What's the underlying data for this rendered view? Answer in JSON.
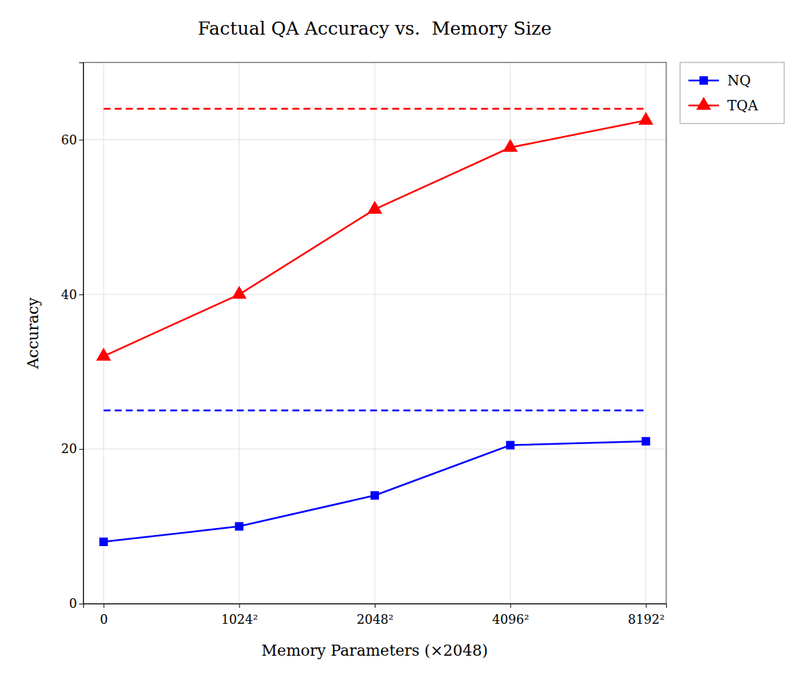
{
  "chart_data": {
    "type": "line",
    "title": "Factual QA Accuracy vs.  Memory Size",
    "x_label": "Memory Parameters (×2048)",
    "y_label": "Accuracy",
    "categories": [
      "0",
      "1024²",
      "2048²",
      "4096²",
      "8192²"
    ],
    "series": [
      {
        "name": "NQ",
        "color": "#0000FF",
        "marker": "square",
        "values": [
          8,
          10,
          14,
          20.5,
          21
        ],
        "baseline": 25
      },
      {
        "name": "TQA",
        "color": "#FF0000",
        "marker": "triangle",
        "values": [
          32,
          40,
          51,
          59,
          62.5
        ],
        "baseline": 64
      }
    ],
    "ylim": [
      0,
      70
    ],
    "yticks": [
      0,
      20,
      40,
      60
    ],
    "grid": true,
    "legend": "upper right"
  }
}
